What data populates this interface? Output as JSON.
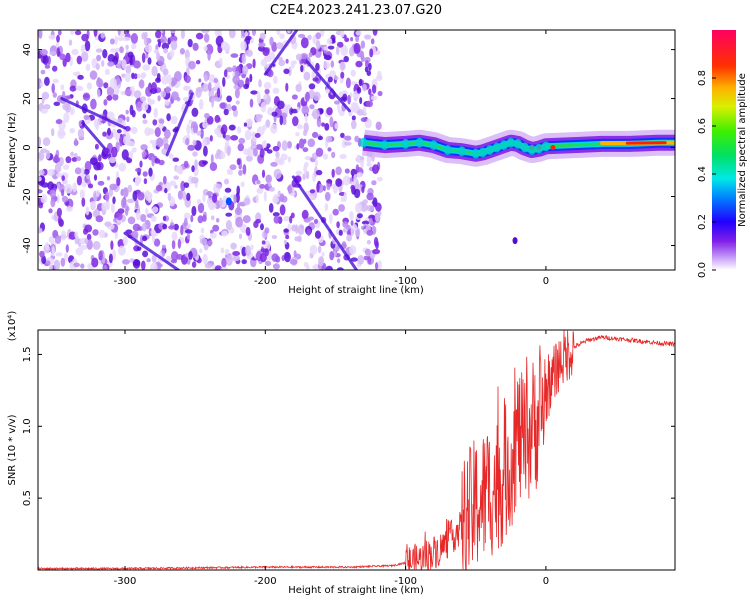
{
  "title": "C2E4.2023.241.23.07.G20",
  "chart_data": [
    {
      "type": "heatmap",
      "xlabel": "Height of straight line (km)",
      "ylabel": "Frequency (Hz)",
      "xlim": [
        -362,
        92
      ],
      "ylim": [
        -50,
        48
      ],
      "xticks": [
        -300,
        -200,
        -100,
        0
      ],
      "xtick_labels": [
        "-300",
        "-200",
        "-100",
        "0"
      ],
      "yticks": [
        -40,
        -20,
        0,
        20,
        40
      ],
      "ytick_labels": [
        "-40",
        "-20",
        "0",
        "20",
        "40"
      ],
      "noise_region": [
        -362,
        -118
      ],
      "signal_track": {
        "x": [
          -130,
          -115,
          -100,
          -90,
          -80,
          -70,
          -60,
          -50,
          -45,
          -40,
          -35,
          -30,
          -25,
          -20,
          -15,
          -10,
          -5,
          0,
          20,
          40,
          60,
          80,
          92
        ],
        "y": [
          2,
          1,
          1.5,
          2,
          1,
          -1,
          -1.5,
          -2.5,
          -2,
          -1,
          0,
          1,
          2,
          1.5,
          0,
          -1,
          -0.5,
          0.5,
          1,
          1.5,
          1.5,
          2,
          2
        ]
      },
      "colorbar": {
        "label": "Normalized spectral amplitude",
        "range": [
          0.0,
          1.0
        ],
        "ticks": [
          0.0,
          0.2,
          0.4,
          0.6,
          0.8
        ],
        "tick_labels": [
          "0.0",
          "0.2",
          "0.4",
          "0.6",
          "0.8"
        ]
      }
    },
    {
      "type": "line",
      "xlabel": "Height of straight line (km)",
      "ylabel": "SNR (10 * v/v)",
      "scale_label": "(x10⁴)",
      "xlim": [
        -362,
        92
      ],
      "ylim": [
        0,
        1.67
      ],
      "xticks": [
        -300,
        -200,
        -100,
        0
      ],
      "xtick_labels": [
        "-300",
        "-200",
        "-100",
        "0"
      ],
      "yticks": [
        0.5,
        1.0,
        1.5
      ],
      "ytick_labels": [
        "0.5",
        "1.0",
        "1.5"
      ],
      "color": "#e62828",
      "series": [
        {
          "x": [
            -362,
            -300,
            -200,
            -140,
            -110,
            -90,
            -75,
            -60,
            -50,
            -40,
            -30,
            -25,
            -20,
            -15,
            -10,
            -5,
            0,
            5,
            10,
            20,
            30,
            40,
            60,
            80,
            92
          ],
          "y": [
            0.01,
            0.01,
            0.02,
            0.02,
            0.03,
            0.07,
            0.15,
            0.3,
            0.45,
            0.55,
            0.65,
            0.75,
            0.95,
            0.85,
            1.0,
            1.05,
            1.2,
            1.35,
            1.45,
            1.55,
            1.6,
            1.62,
            1.6,
            1.58,
            1.57
          ]
        }
      ]
    }
  ]
}
